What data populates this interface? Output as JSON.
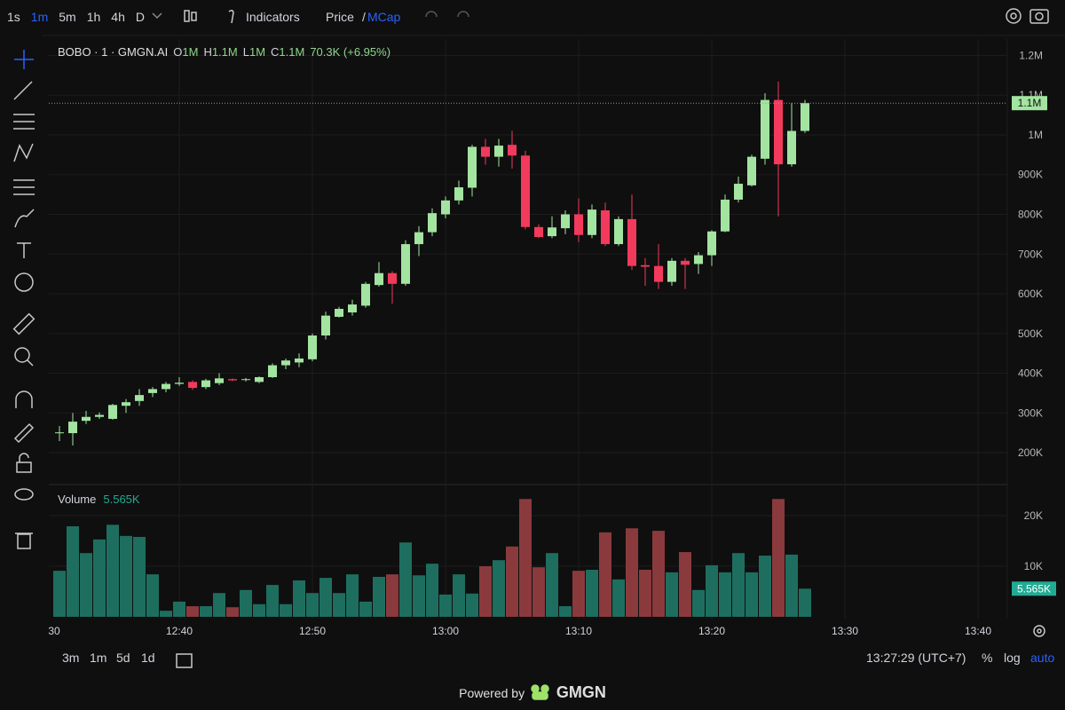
{
  "toolbar": {
    "timeframes": [
      "1s",
      "1m",
      "5m",
      "1h",
      "4h",
      "D"
    ],
    "indicators": "Indicators",
    "price": "Price",
    "slash": "/",
    "mcap": "MCap"
  },
  "chart_data": [
    {
      "type": "candlestick",
      "title": "BOBO · 1 · GMGN.AI",
      "ohlc_legend": [
        {
          "label": "O",
          "value": "1M"
        },
        {
          "label": "H",
          "value": "1.1M"
        },
        {
          "label": "L",
          "value": "1M"
        },
        {
          "label": "C",
          "value": "1.1M"
        }
      ],
      "change": "70.3K (+6.95%)",
      "x": [
        "12:31",
        "12:32",
        "12:33",
        "12:34",
        "12:35",
        "12:36",
        "12:37",
        "12:38",
        "12:39",
        "12:40",
        "12:41",
        "12:42",
        "12:43",
        "12:44",
        "12:45",
        "12:46",
        "12:47",
        "12:48",
        "12:49",
        "12:50",
        "12:51",
        "12:52",
        "12:53",
        "12:54",
        "12:55",
        "12:56",
        "12:57",
        "12:58",
        "12:59",
        "13:00",
        "13:01",
        "13:02",
        "13:03",
        "13:04",
        "13:05",
        "13:06",
        "13:07",
        "13:08",
        "13:09",
        "13:10",
        "13:11",
        "13:12",
        "13:13",
        "13:14",
        "13:15",
        "13:16",
        "13:17",
        "13:18",
        "13:19",
        "13:20",
        "13:21",
        "13:22",
        "13:23",
        "13:24",
        "13:25",
        "13:26",
        "13:27"
      ],
      "open": [
        249000,
        249000,
        280000,
        290000,
        285000,
        318000,
        330000,
        350000,
        360000,
        373000,
        378000,
        365000,
        375000,
        385000,
        383000,
        378000,
        390000,
        420000,
        427000,
        435000,
        495000,
        542000,
        553000,
        570000,
        622000,
        652000,
        625000,
        725000,
        755000,
        800000,
        835000,
        867000,
        970000,
        945000,
        975000,
        948000,
        768000,
        745000,
        765000,
        800000,
        748000,
        810000,
        725000,
        788000,
        672000,
        670000,
        630000,
        683000,
        675000,
        697000,
        757000,
        837000,
        873000,
        940000,
        1088000,
        926000,
        1010000
      ],
      "high": [
        267000,
        300000,
        305000,
        301000,
        323000,
        335000,
        360000,
        365000,
        378000,
        390000,
        382000,
        386000,
        400000,
        387000,
        388000,
        392000,
        425000,
        437000,
        450000,
        500000,
        555000,
        567000,
        585000,
        630000,
        680000,
        657000,
        735000,
        770000,
        815000,
        845000,
        885000,
        975000,
        990000,
        990000,
        1010000,
        960000,
        775000,
        795000,
        810000,
        840000,
        825000,
        830000,
        795000,
        850000,
        690000,
        725000,
        690000,
        690000,
        705000,
        760000,
        850000,
        895000,
        950000,
        1105000,
        1134000,
        1080000,
        1088000
      ],
      "low": [
        229000,
        218000,
        272000,
        285000,
        283000,
        300000,
        318000,
        340000,
        352000,
        368000,
        358000,
        360000,
        370000,
        380000,
        379000,
        375000,
        388000,
        410000,
        415000,
        430000,
        485000,
        540000,
        545000,
        565000,
        618000,
        575000,
        620000,
        695000,
        745000,
        790000,
        825000,
        845000,
        925000,
        920000,
        915000,
        762000,
        740000,
        740000,
        750000,
        730000,
        740000,
        720000,
        720000,
        660000,
        620000,
        612000,
        620000,
        612000,
        650000,
        670000,
        755000,
        830000,
        870000,
        925000,
        795000,
        920000,
        1005000
      ],
      "close": [
        251000,
        278000,
        290000,
        295000,
        320000,
        327000,
        345000,
        360000,
        373000,
        376000,
        363000,
        382000,
        387000,
        382000,
        385000,
        390000,
        420000,
        432000,
        437000,
        495000,
        545000,
        562000,
        573000,
        625000,
        652000,
        625000,
        725000,
        755000,
        803000,
        835000,
        868000,
        970000,
        945000,
        973000,
        948000,
        768000,
        743000,
        767000,
        800000,
        748000,
        812000,
        725000,
        788000,
        670000,
        668000,
        630000,
        683000,
        673000,
        697000,
        757000,
        837000,
        877000,
        945000,
        1088000,
        926000,
        1010000,
        1080000
      ],
      "last_price_label": "1.1M",
      "up_color": "#a3e4a1",
      "down_color": "#f23a5c",
      "grid": true,
      "xlim": [
        "12:30",
        "13:42"
      ],
      "xticks": [
        {
          "value": "12:30",
          "label": "30"
        },
        "12:40",
        "12:50",
        "13:00",
        "13:10",
        "13:20",
        "13:30",
        "13:40"
      ],
      "ylim": [
        121800,
        1239100
      ],
      "yticks": [
        {
          "value": 200000,
          "label": "200K"
        },
        {
          "value": 300000,
          "label": "300K"
        },
        {
          "value": 400000,
          "label": "400K"
        },
        {
          "value": 500000,
          "label": "500K"
        },
        {
          "value": 600000,
          "label": "600K"
        },
        {
          "value": 700000,
          "label": "700K"
        },
        {
          "value": 800000,
          "label": "800K"
        },
        {
          "value": 900000,
          "label": "900K"
        },
        {
          "value": 1000000,
          "label": "1M"
        },
        {
          "value": 1100000,
          "label": "1.1M"
        },
        {
          "value": 1200000,
          "label": "1.2M"
        }
      ]
    },
    {
      "type": "bar",
      "title": "Volume",
      "last_value_label": "5.565K",
      "values": [
        9100,
        17900,
        12600,
        15300,
        18200,
        16000,
        15800,
        8400,
        1200,
        3000,
        2100,
        2100,
        4700,
        1900,
        5300,
        2500,
        6300,
        2500,
        7200,
        4700,
        7700,
        4700,
        8400,
        3000,
        7900,
        8400,
        14700,
        8200,
        10500,
        4400,
        8400,
        4600,
        10000,
        11200,
        13900,
        23300,
        9800,
        12600,
        2100,
        9100,
        9300,
        16700,
        7400,
        17500,
        9300,
        17000,
        8800,
        12800,
        5300,
        10200,
        8800,
        12600,
        8800,
        12100,
        23300,
        12300,
        5565
      ],
      "up_color": "#1e6e5f",
      "down_color": "#8a3a3d",
      "label_color": "#22ab94",
      "ylim": [
        0,
        25800
      ],
      "yticks": [
        {
          "value": 10000,
          "label": "10K"
        },
        {
          "value": 20000,
          "label": "20K"
        }
      ]
    }
  ],
  "bottombar": {
    "ranges": [
      "3m",
      "1m",
      "5d",
      "1d"
    ],
    "time": "13:27:29 (UTC+7)",
    "percent": "%",
    "log": "log",
    "auto": "auto"
  },
  "footer": {
    "powered": "Powered by",
    "brand": "GMGN"
  }
}
